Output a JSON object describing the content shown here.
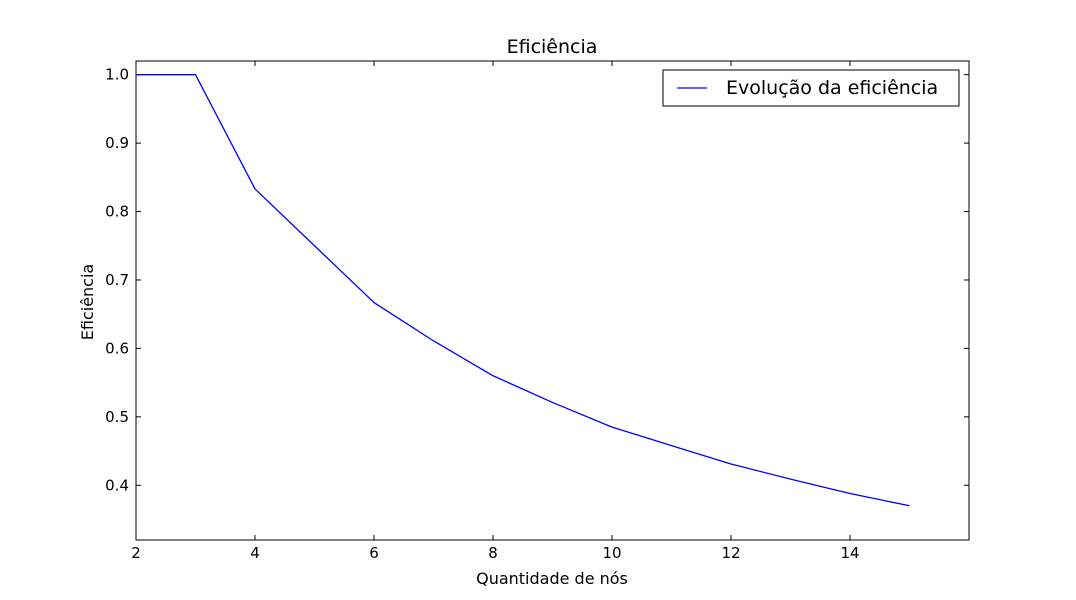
{
  "chart_data": {
    "type": "line",
    "title": "Eficiência",
    "xlabel": "Quantidade de nós",
    "ylabel": "Eficiência",
    "xlim": [
      2,
      16
    ],
    "ylim": [
      0.32,
      1.02
    ],
    "grid": false,
    "legend_position": "top-right",
    "x_ticks": [
      2,
      4,
      6,
      8,
      10,
      12,
      14
    ],
    "x_tick_labels": [
      "2",
      "4",
      "6",
      "8",
      "10",
      "12",
      "14"
    ],
    "y_ticks": [
      0.4,
      0.5,
      0.6,
      0.7,
      0.8,
      0.9,
      1.0
    ],
    "y_tick_labels": [
      "0.4",
      "0.5",
      "0.6",
      "0.7",
      "0.8",
      "0.9",
      "1.0"
    ],
    "series": [
      {
        "name": "Evolução da eficiência",
        "color": "#0000ff",
        "x": [
          1,
          2,
          3,
          4,
          5,
          6,
          7,
          8,
          9,
          10,
          11,
          12,
          13,
          14,
          15
        ],
        "values": [
          1.0,
          1.0,
          1.0,
          0.833,
          0.75,
          0.667,
          0.611,
          0.56,
          0.521,
          0.485,
          0.458,
          0.431,
          0.409,
          0.388,
          0.37
        ]
      }
    ]
  }
}
